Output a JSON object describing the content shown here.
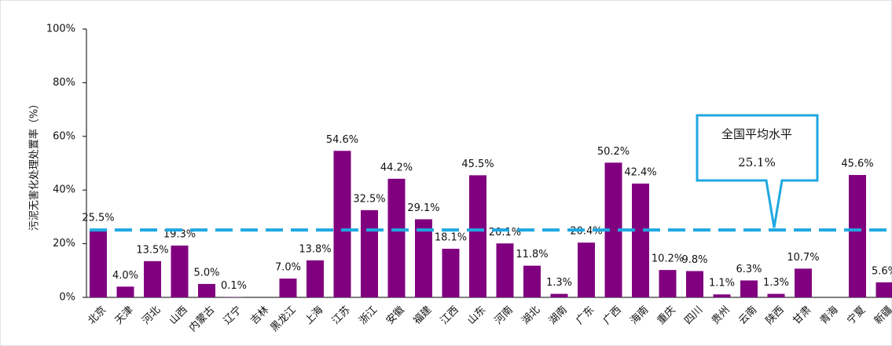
{
  "chart_data": {
    "type": "bar",
    "y_label": "污泥无害化处理处置率（%）",
    "categories": [
      "北京",
      "天津",
      "河北",
      "山西",
      "内蒙古",
      "辽宁",
      "吉林",
      "黑龙江",
      "上海",
      "江苏",
      "浙江",
      "安徽",
      "福建",
      "江西",
      "山东",
      "河南",
      "湖北",
      "湖南",
      "广东",
      "广西",
      "海南",
      "重庆",
      "四川",
      "贵州",
      "云南",
      "陕西",
      "甘肃",
      "青海",
      "宁夏",
      "新疆"
    ],
    "values": [
      25.5,
      4.0,
      13.5,
      19.3,
      5.0,
      0.1,
      null,
      7.0,
      13.8,
      54.6,
      32.5,
      44.2,
      29.1,
      18.1,
      45.5,
      20.1,
      11.8,
      1.3,
      20.4,
      50.2,
      42.4,
      10.2,
      9.8,
      1.1,
      6.3,
      1.3,
      10.7,
      null,
      45.6,
      5.6
    ],
    "value_labels": [
      "25.5%",
      "4.0%",
      "13.5%",
      "19.3%",
      "5.0%",
      "0.1%",
      null,
      "7.0%",
      "13.8%",
      "54.6%",
      "32.5%",
      "44.2%",
      "29.1%",
      "18.1%",
      "45.5%",
      "20.1%",
      "11.8%",
      "1.3%",
      "20.4%",
      "50.2%",
      "42.4%",
      "10.2%",
      "9.8%",
      "1.1%",
      "6.3%",
      "1.3%",
      "10.7%",
      null,
      "45.6%",
      "5.6%"
    ],
    "color": "#800080",
    "ylim": [
      0,
      100
    ],
    "yticks": [
      {
        "value": 0,
        "label": "0%"
      },
      {
        "value": 20,
        "label": "20%"
      },
      {
        "value": 40,
        "label": "40%"
      },
      {
        "value": 60,
        "label": "60%"
      },
      {
        "value": 80,
        "label": "80%"
      },
      {
        "value": 100,
        "label": "100%"
      }
    ],
    "average": {
      "label": "全国平均水平",
      "value": 25.1,
      "value_label": "25.1%",
      "color": "#1fa8e0"
    }
  }
}
